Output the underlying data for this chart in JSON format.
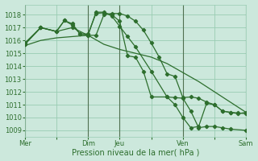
{
  "background_color": "#cce8dc",
  "grid_color": "#99ccb3",
  "line_color": "#2d6e2d",
  "marker_color": "#2d6e2d",
  "xlabel": "Pression niveau de la mer( hPa )",
  "ylim": [
    1008.5,
    1018.8
  ],
  "yticks": [
    1009,
    1010,
    1011,
    1012,
    1013,
    1014,
    1015,
    1016,
    1017,
    1018
  ],
  "xtick_labels": [
    "Mer",
    "",
    "Dim",
    "Jeu",
    "",
    "Ven",
    "",
    "Sam"
  ],
  "xtick_positions": [
    0,
    2,
    4,
    6,
    8,
    10,
    12,
    14
  ],
  "vline_positions": [
    0,
    4,
    6,
    10,
    14
  ],
  "series": [
    {
      "has_markers": false,
      "x": [
        0,
        1,
        2,
        3,
        4,
        5,
        6,
        7,
        8,
        9,
        10,
        11,
        12,
        13,
        14
      ],
      "y": [
        1015.6,
        1016.0,
        1016.2,
        1016.3,
        1016.4,
        1015.7,
        1015.3,
        1015.0,
        1014.7,
        1014.2,
        1013.5,
        1012.8,
        1012.0,
        1011.2,
        1010.4
      ]
    },
    {
      "has_markers": true,
      "x": [
        0,
        1,
        2,
        3,
        4,
        4.5,
        5,
        5.5,
        6,
        6.5,
        7,
        7.5,
        8,
        8.5,
        9,
        9.5,
        10,
        10.5,
        11,
        11.5,
        12,
        12.5,
        13,
        13.5,
        14
      ],
      "y": [
        1015.7,
        1017.0,
        1016.7,
        1017.0,
        1016.4,
        1016.4,
        1018.0,
        1018.1,
        1018.1,
        1017.9,
        1017.5,
        1016.8,
        1015.8,
        1014.7,
        1013.4,
        1013.2,
        1011.55,
        1011.6,
        1011.5,
        1011.2,
        1011.0,
        1010.5,
        1010.4,
        1010.3,
        1010.4
      ]
    },
    {
      "has_markers": true,
      "x": [
        0,
        1,
        2,
        2.5,
        3,
        3.5,
        4,
        4.5,
        5,
        5.5,
        6,
        6.5,
        7,
        8,
        9,
        9.5,
        10,
        10.5,
        11,
        11.5,
        12,
        12.5,
        13,
        14
      ],
      "y": [
        1015.7,
        1017.0,
        1016.7,
        1017.55,
        1017.3,
        1016.5,
        1016.4,
        1018.2,
        1018.2,
        1017.9,
        1017.1,
        1016.3,
        1015.5,
        1013.6,
        1011.6,
        1011.55,
        1011.5,
        1010.5,
        1009.2,
        1009.3,
        1009.3,
        1009.2,
        1009.1,
        1009.0
      ]
    },
    {
      "has_markers": true,
      "x": [
        0,
        1,
        2,
        2.5,
        3,
        3.5,
        4,
        4.5,
        5,
        5.5,
        6,
        6.5,
        7,
        7.5,
        8,
        9,
        9.5,
        10,
        10.5,
        11,
        11.5,
        12,
        12.5,
        13,
        13.5,
        14
      ],
      "y": [
        1015.8,
        1017.0,
        1016.7,
        1017.55,
        1017.2,
        1016.5,
        1016.5,
        1018.1,
        1018.15,
        1018.0,
        1017.5,
        1014.8,
        1014.7,
        1013.6,
        1011.6,
        1011.6,
        1011.0,
        1010.0,
        1009.2,
        1009.3,
        1011.1,
        1011.0,
        1010.5,
        1010.4,
        1010.35,
        1010.3
      ]
    }
  ]
}
